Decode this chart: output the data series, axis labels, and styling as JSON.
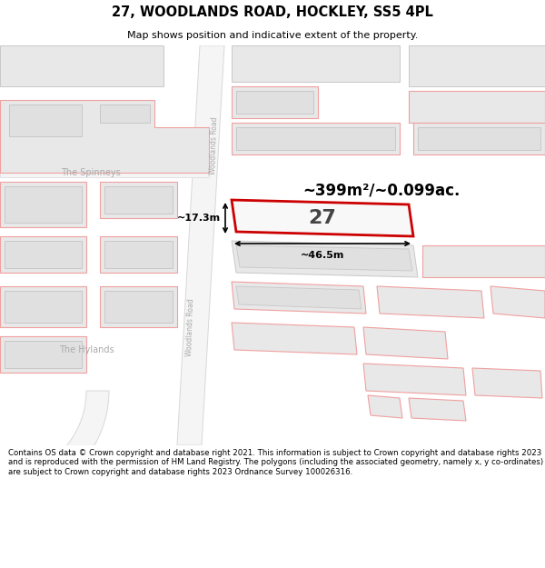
{
  "title": "27, WOODLANDS ROAD, HOCKLEY, SS5 4PL",
  "subtitle": "Map shows position and indicative extent of the property.",
  "footer": "Contains OS data © Crown copyright and database right 2021. This information is subject to Crown copyright and database rights 2023 and is reproduced with the permission of HM Land Registry. The polygons (including the associated geometry, namely x, y co-ordinates) are subject to Crown copyright and database rights 2023 Ordnance Survey 100026316.",
  "area_text": "~399m²/~0.099ac.",
  "number_text": "27",
  "dim_width": "~46.5m",
  "dim_height": "~17.3m",
  "road_label": "Woodlands Road",
  "left_label": "The Spinneys",
  "bottom_left_label": "The Hylands",
  "bg_color": "#ffffff",
  "map_bg": "#ffffff",
  "building_gray": "#e8e8e8",
  "building_gray_outline": "#c8c8c8",
  "pink_outline": "#f0a0a0",
  "red_outline": "#cc0000",
  "road_color": "#f5f5f5",
  "label_color": "#aaaaaa"
}
